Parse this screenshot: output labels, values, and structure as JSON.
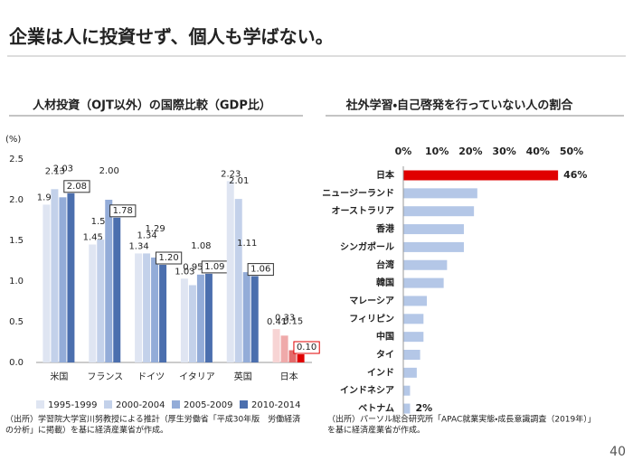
{
  "header": {
    "title": "企業は人に投資せず、個人も学ばない。"
  },
  "chart_data": [
    {
      "type": "bar",
      "title": "人材投資（OJT以外）の国際比較（GDP比）",
      "y_label": "(%)",
      "categories": [
        "米国",
        "フランス",
        "ドイツ",
        "イタリア",
        "英国",
        "日本"
      ],
      "ylim": [
        0,
        2.5
      ],
      "yticks": [
        {
          "value": 0,
          "label": "0.0"
        },
        0.5,
        {
          "value": 1,
          "label": "1.0"
        },
        1.5,
        {
          "value": 2,
          "label": "2.0"
        },
        2.5
      ],
      "highlight_category": "日本",
      "series": [
        {
          "name": "1995-1999",
          "color": "#dfe5f2",
          "highlight_color": "#f7d4d4",
          "values": [
            1.94,
            1.45,
            1.34,
            1.03,
            2.23,
            0.41
          ],
          "value_labels": [
            "1.94",
            "1.45",
            "1.34",
            "1.03",
            "2.23",
            "0.41"
          ]
        },
        {
          "name": "2000-2004",
          "color": "#c3d1ea",
          "highlight_color": "#efaaaa",
          "values": [
            2.13,
            1.51,
            1.34,
            0.95,
            2.01,
            0.33
          ],
          "value_labels": [
            "2.13",
            "1.51",
            "1.34",
            "0.95",
            "2.01",
            "0.33"
          ]
        },
        {
          "name": "2005-2009",
          "color": "#93acd8",
          "highlight_color": "#e46a6a",
          "values": [
            2.03,
            2.0,
            1.29,
            1.08,
            1.11,
            0.15
          ],
          "value_labels": [
            "2.03",
            "2.00",
            "1.29",
            "1.08",
            "1.11",
            "0.15"
          ]
        },
        {
          "name": "2010-2014",
          "color": "#4b6fae",
          "highlight_color": "#e00000",
          "values": [
            2.08,
            1.78,
            1.2,
            1.09,
            1.06,
            0.1
          ],
          "value_labels": [
            "2.08",
            "1.78",
            "1.20",
            "1.09",
            "1.06",
            "0.10"
          ],
          "label_box": true
        }
      ],
      "source": [
        "（出所）学習院大学宮川努教授による推計（厚生労働省「平成30年版　労働経済",
        "の分析」に掲載）を基に経済産業省が作成。"
      ]
    },
    {
      "type": "barh",
      "title": "社外学習・自己啓発を行っていない人の割合",
      "categories": [
        "日本",
        "ニュージーランド",
        "オーストラリア",
        "香港",
        "シンガポール",
        "台湾",
        "韓国",
        "マレーシア",
        "フィリピン",
        "中国",
        "タイ",
        "インド",
        "インドネシア",
        "ベトナム"
      ],
      "values": [
        46,
        22,
        21,
        18,
        18,
        13,
        12,
        7,
        6,
        6,
        5,
        4,
        2,
        2
      ],
      "value_labels": [
        "46%",
        null,
        null,
        null,
        null,
        null,
        null,
        null,
        null,
        null,
        null,
        null,
        null,
        "2%"
      ],
      "color": "#b4c7e7",
      "highlight_category": "日本",
      "highlight_color": "#e00000",
      "xlim": [
        0,
        50
      ],
      "xticks": [
        {
          "value": 0,
          "label": "0%"
        },
        {
          "value": 10,
          "label": "10%"
        },
        {
          "value": 20,
          "label": "20%"
        },
        {
          "value": 30,
          "label": "30%"
        },
        {
          "value": 40,
          "label": "40%"
        },
        {
          "value": 50,
          "label": "50%"
        }
      ],
      "source": [
        "（出所）パーソル総合研究所「APAC就業実態・成長意識調査（2019年）」",
        "を基に経済産業省が作成。"
      ]
    }
  ],
  "page_number": "40"
}
